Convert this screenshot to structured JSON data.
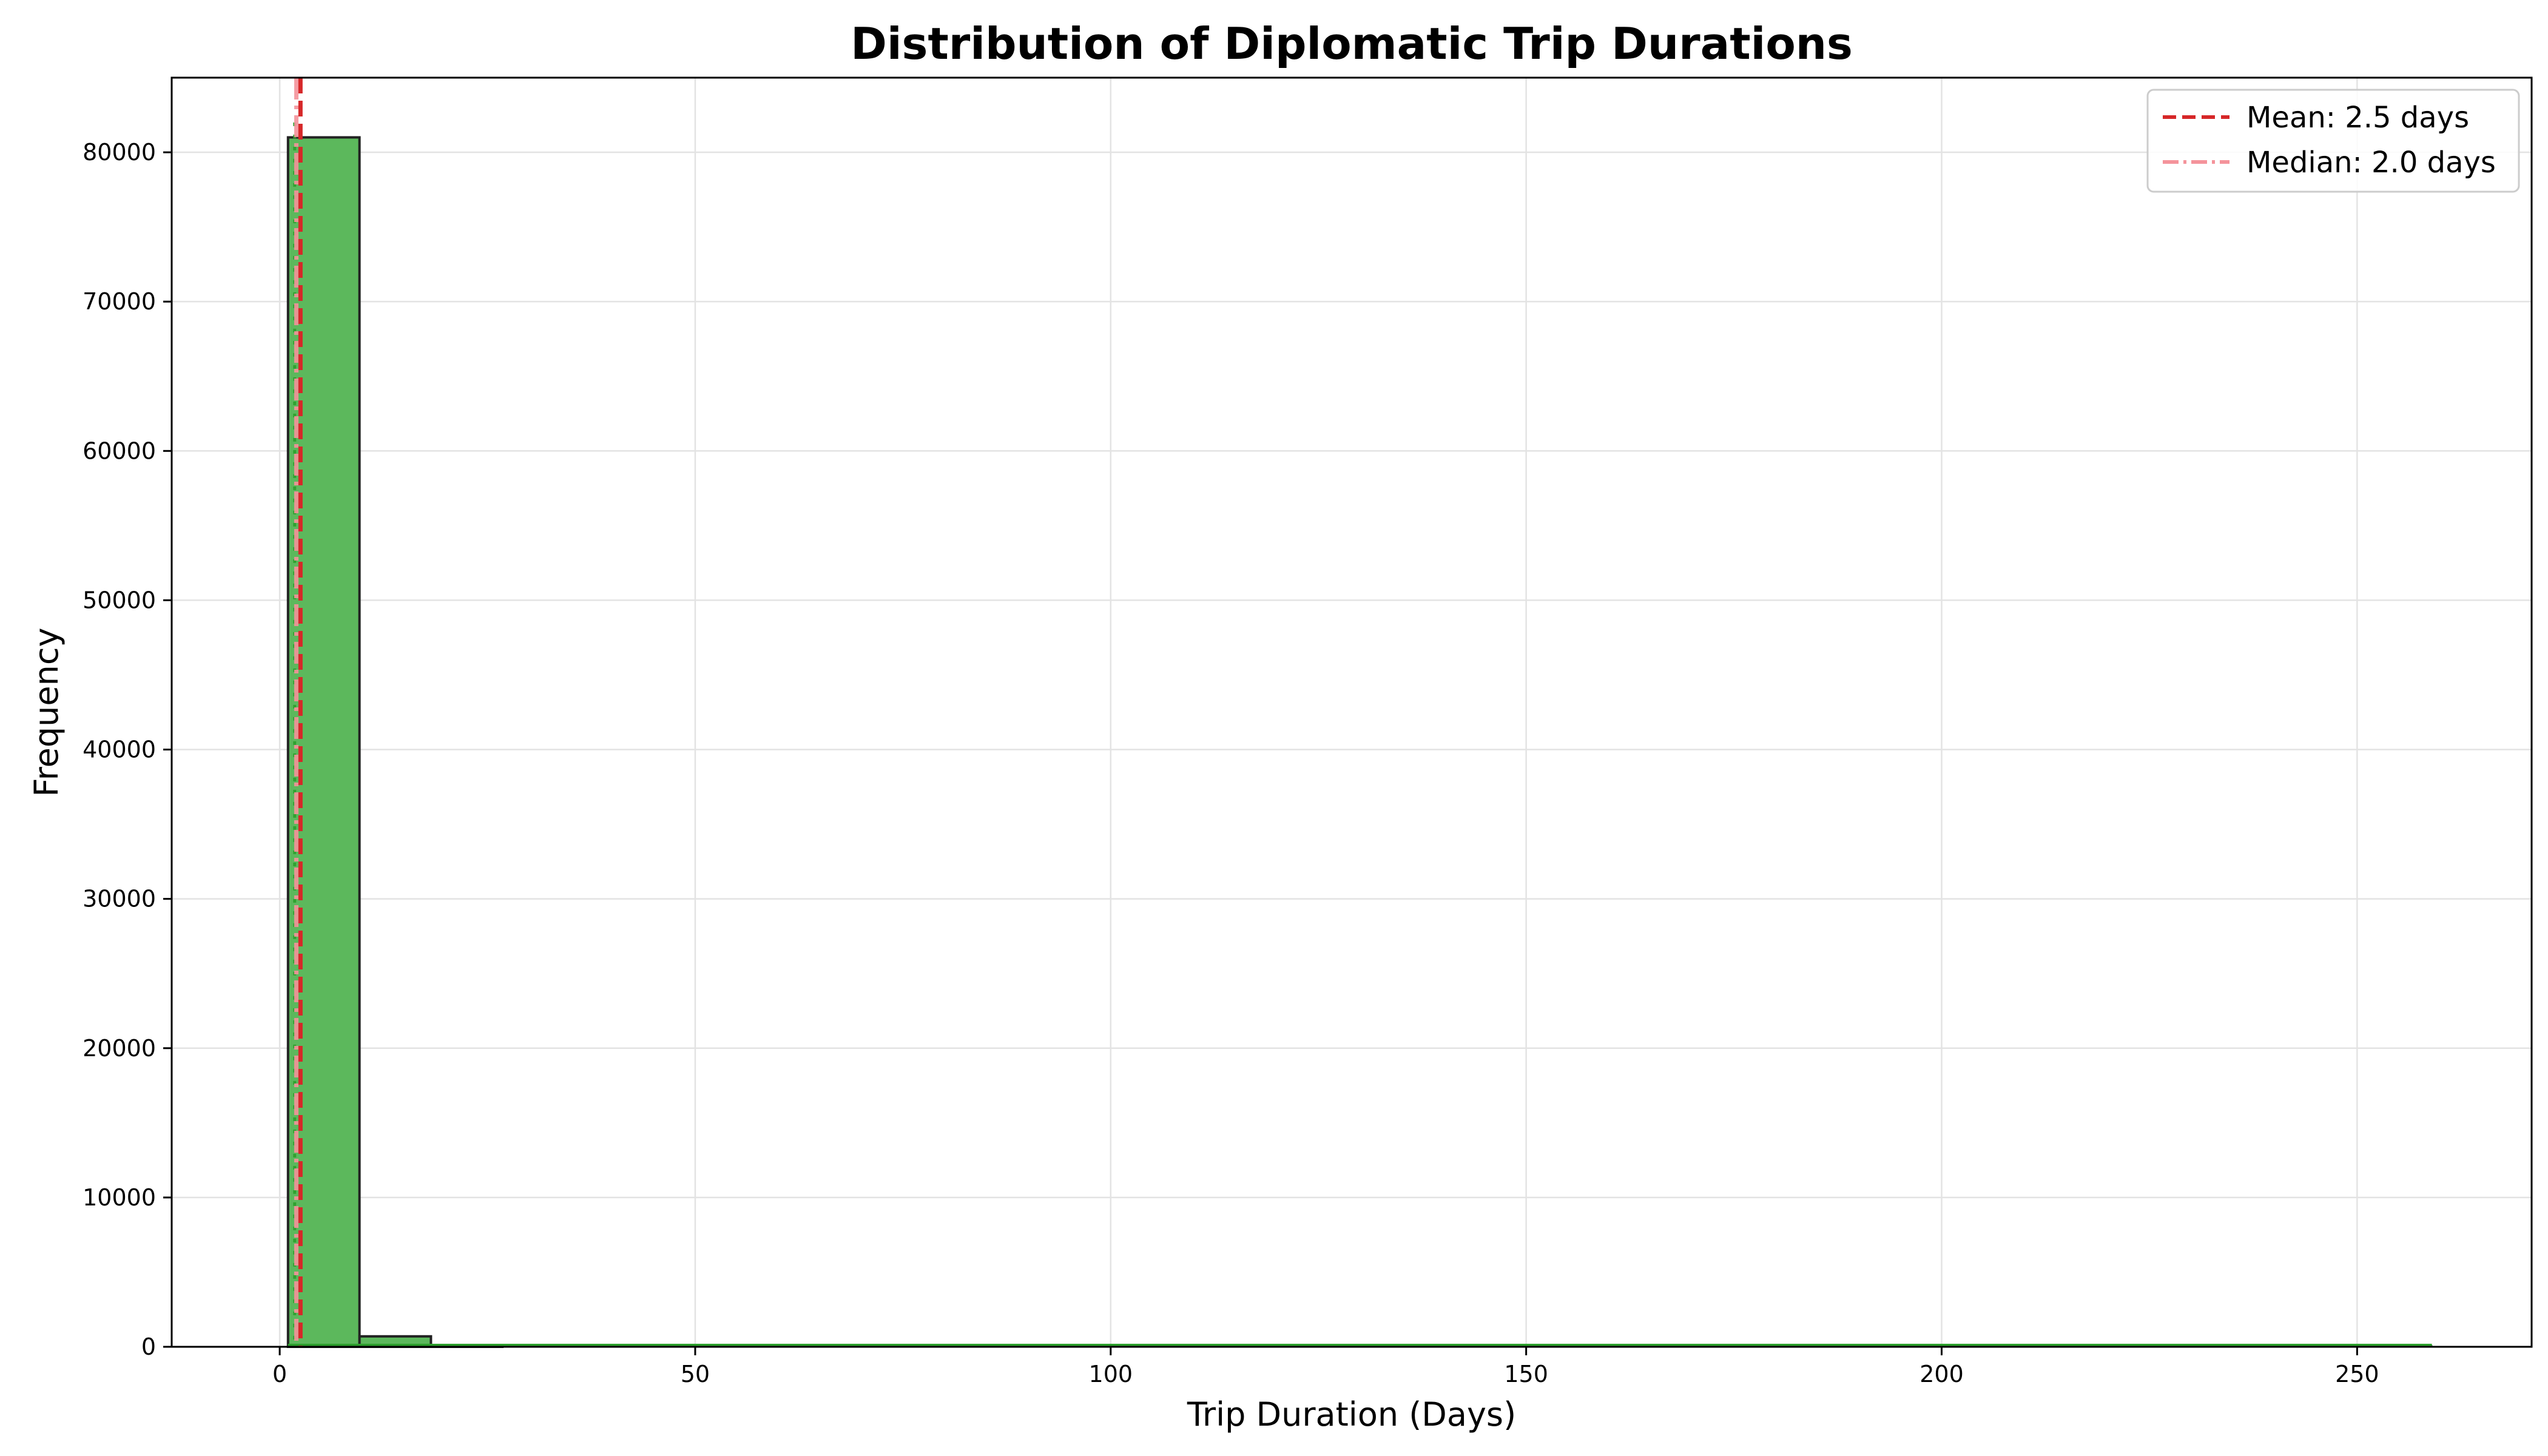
{
  "chart_data": {
    "type": "bar",
    "title": "Distribution of Diplomatic Trip Durations",
    "xlabel": "Trip Duration (Days)",
    "ylabel": "Frequency",
    "xlim": [
      -13,
      271
    ],
    "ylim": [
      0,
      85000
    ],
    "xticks": [
      0,
      50,
      100,
      150,
      200,
      250
    ],
    "yticks": [
      0,
      10000,
      20000,
      30000,
      40000,
      50000,
      60000,
      70000,
      80000
    ],
    "grid": true,
    "legend_position": "top-right",
    "bins": [
      {
        "start": 1.0,
        "end": 9.6,
        "count": 81000
      },
      {
        "start": 9.6,
        "end": 18.2,
        "count": 700
      },
      {
        "start": 18.2,
        "end": 26.8,
        "count": 60
      },
      {
        "start": 26.8,
        "end": 35.4,
        "count": 25
      },
      {
        "start": 35.4,
        "end": 44.0,
        "count": 10
      },
      {
        "start": 44.0,
        "end": 52.6,
        "count": 5
      },
      {
        "start": 52.6,
        "end": 61.2,
        "count": 3
      },
      {
        "start": 61.2,
        "end": 69.8,
        "count": 2
      },
      {
        "start": 69.8,
        "end": 78.4,
        "count": 1
      },
      {
        "start": 78.4,
        "end": 87.0,
        "count": 1
      },
      {
        "start": 87.0,
        "end": 95.6,
        "count": 1
      },
      {
        "start": 95.6,
        "end": 104.2,
        "count": 0
      },
      {
        "start": 104.2,
        "end": 112.8,
        "count": 1
      },
      {
        "start": 112.8,
        "end": 121.4,
        "count": 0
      },
      {
        "start": 121.4,
        "end": 130.0,
        "count": 0
      },
      {
        "start": 130.0,
        "end": 138.6,
        "count": 1
      },
      {
        "start": 138.6,
        "end": 147.2,
        "count": 0
      },
      {
        "start": 147.2,
        "end": 155.8,
        "count": 0
      },
      {
        "start": 155.8,
        "end": 164.4,
        "count": 0
      },
      {
        "start": 164.4,
        "end": 173.0,
        "count": 0
      },
      {
        "start": 173.0,
        "end": 181.6,
        "count": 0
      },
      {
        "start": 181.6,
        "end": 190.2,
        "count": 0
      },
      {
        "start": 190.2,
        "end": 198.8,
        "count": 0
      },
      {
        "start": 198.8,
        "end": 207.4,
        "count": 0
      },
      {
        "start": 207.4,
        "end": 216.0,
        "count": 0
      },
      {
        "start": 216.0,
        "end": 224.6,
        "count": 0
      },
      {
        "start": 224.6,
        "end": 233.2,
        "count": 0
      },
      {
        "start": 233.2,
        "end": 241.8,
        "count": 0
      },
      {
        "start": 241.8,
        "end": 250.4,
        "count": 0
      },
      {
        "start": 250.4,
        "end": 259.0,
        "count": 1
      }
    ],
    "mean": {
      "value": 2.5,
      "label": "Mean: 2.5 days",
      "color": "#d62728"
    },
    "median": {
      "value": 2.0,
      "label": "Median: 2.0 days",
      "color": "#f4939b"
    },
    "kde_color": "#2ca02c",
    "bar_color": "#5cb85c"
  }
}
